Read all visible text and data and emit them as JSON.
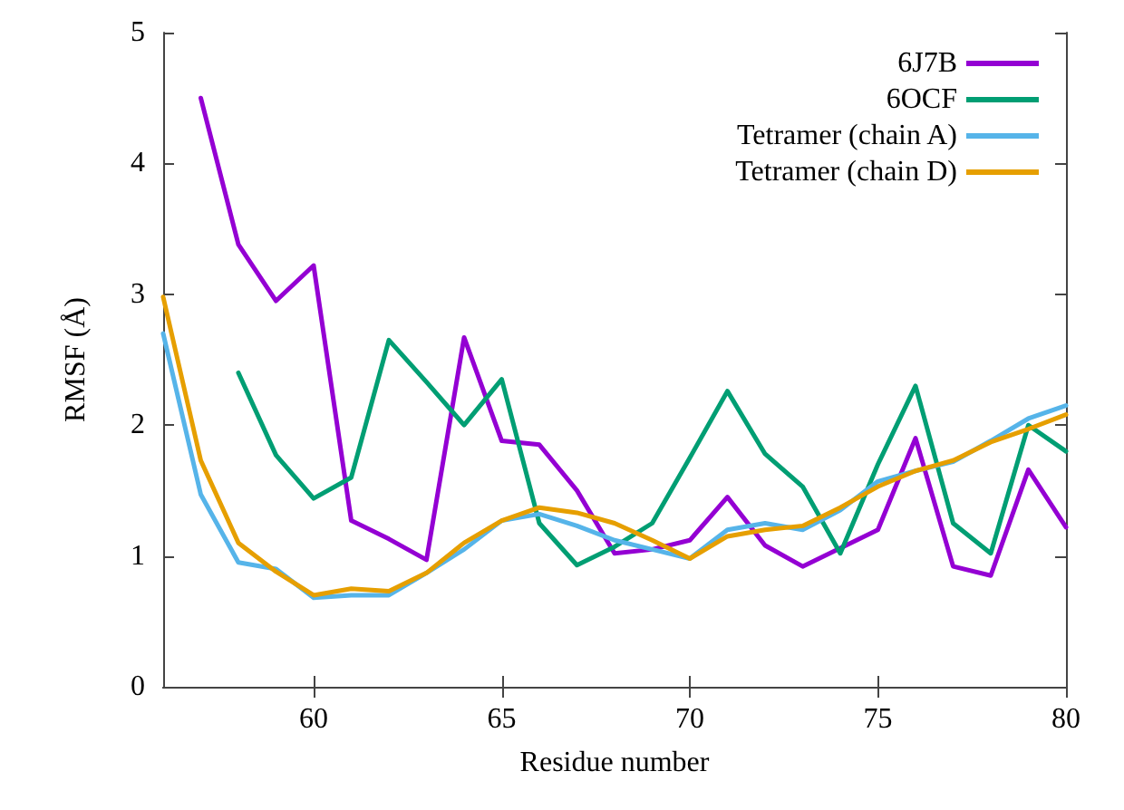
{
  "chart_data": {
    "type": "line",
    "xlabel": "Residue number",
    "ylabel": "RMSF (Å)",
    "xlim": [
      56,
      80
    ],
    "xticks": [
      60,
      65,
      70,
      75,
      80
    ],
    "ylim": [
      0,
      5
    ],
    "yticks": [
      0,
      1,
      2,
      3,
      4,
      5
    ],
    "grid": false,
    "legend": "top right",
    "marker": "none",
    "line_style": "solid",
    "series": [
      {
        "name": "6J7B",
        "color": "#9400d3",
        "x": [
          57,
          58,
          59,
          60,
          61,
          62,
          63,
          64,
          65,
          66,
          67,
          68,
          69,
          70,
          71,
          72,
          73,
          74,
          75,
          76,
          77,
          78,
          79,
          80
        ],
        "values": [
          4.5,
          3.38,
          2.95,
          3.22,
          1.27,
          1.13,
          0.97,
          2.67,
          1.88,
          1.85,
          1.5,
          1.02,
          1.05,
          1.12,
          1.45,
          1.08,
          0.92,
          1.06,
          1.2,
          1.9,
          0.92,
          0.85,
          1.66,
          1.22
        ]
      },
      {
        "name": "6OCF",
        "color": "#009e73",
        "x": [
          58,
          59,
          60,
          61,
          62,
          63,
          64,
          65,
          66,
          67,
          68,
          69,
          70,
          71,
          72,
          73,
          74,
          75,
          76,
          77,
          78,
          79,
          80
        ],
        "values": [
          2.4,
          1.77,
          1.44,
          1.6,
          2.65,
          2.33,
          2.0,
          2.35,
          1.25,
          0.93,
          1.07,
          1.25,
          1.75,
          2.26,
          1.78,
          1.53,
          1.02,
          1.7,
          2.3,
          1.25,
          1.02,
          2.0,
          1.8
        ]
      },
      {
        "name": "Tetramer (chain A)",
        "color": "#56b4e9",
        "x": [
          56,
          57,
          58,
          59,
          60,
          61,
          62,
          63,
          64,
          65,
          66,
          67,
          68,
          69,
          70,
          71,
          72,
          73,
          74,
          75,
          76,
          77,
          78,
          79,
          80
        ],
        "values": [
          2.7,
          1.47,
          0.95,
          0.9,
          0.68,
          0.7,
          0.7,
          0.87,
          1.05,
          1.27,
          1.32,
          1.23,
          1.12,
          1.05,
          0.98,
          1.2,
          1.25,
          1.2,
          1.35,
          1.57,
          1.65,
          1.72,
          1.88,
          2.05,
          2.15
        ]
      },
      {
        "name": "Tetramer (chain D)",
        "color": "#e69f00",
        "x": [
          56,
          57,
          58,
          59,
          60,
          61,
          62,
          63,
          64,
          65,
          66,
          67,
          68,
          69,
          70,
          71,
          72,
          73,
          74,
          75,
          76,
          77,
          78,
          79,
          80
        ],
        "values": [
          2.98,
          1.73,
          1.1,
          0.88,
          0.7,
          0.75,
          0.73,
          0.87,
          1.1,
          1.27,
          1.37,
          1.33,
          1.25,
          1.12,
          0.98,
          1.15,
          1.2,
          1.23,
          1.37,
          1.53,
          1.65,
          1.73,
          1.87,
          1.97,
          2.08
        ]
      }
    ]
  }
}
